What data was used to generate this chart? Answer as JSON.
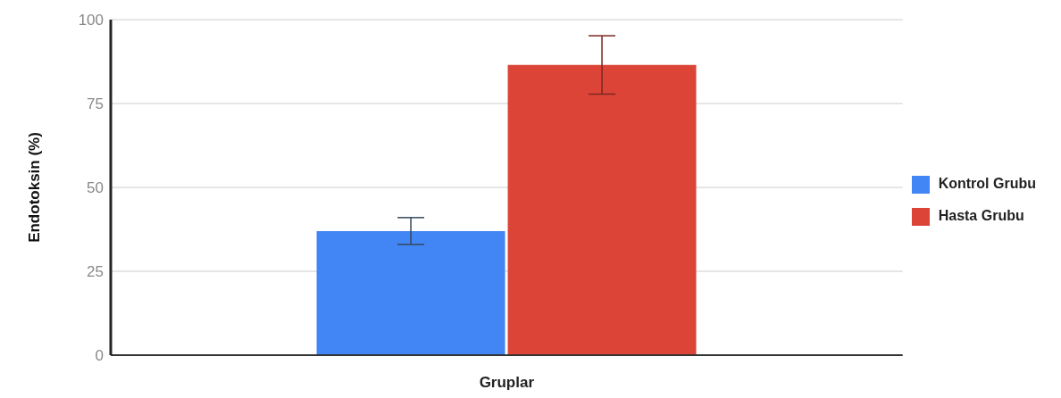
{
  "chart_data": {
    "type": "bar",
    "xlabel": "Gruplar",
    "ylabel": "Endotoksin (%)",
    "categories": [
      null
    ],
    "series": [
      {
        "name": "Kontrol Grubu",
        "color": "#4285f4",
        "values": [
          37
        ],
        "errors": [
          4
        ]
      },
      {
        "name": "Hasta Grubu",
        "color": "#db4437",
        "values": [
          86.5
        ],
        "errors": [
          8.7
        ]
      }
    ],
    "ylim": [
      0,
      100
    ],
    "yticks": [
      0,
      25,
      50,
      75,
      100
    ],
    "grid": "y",
    "legend": "right"
  }
}
